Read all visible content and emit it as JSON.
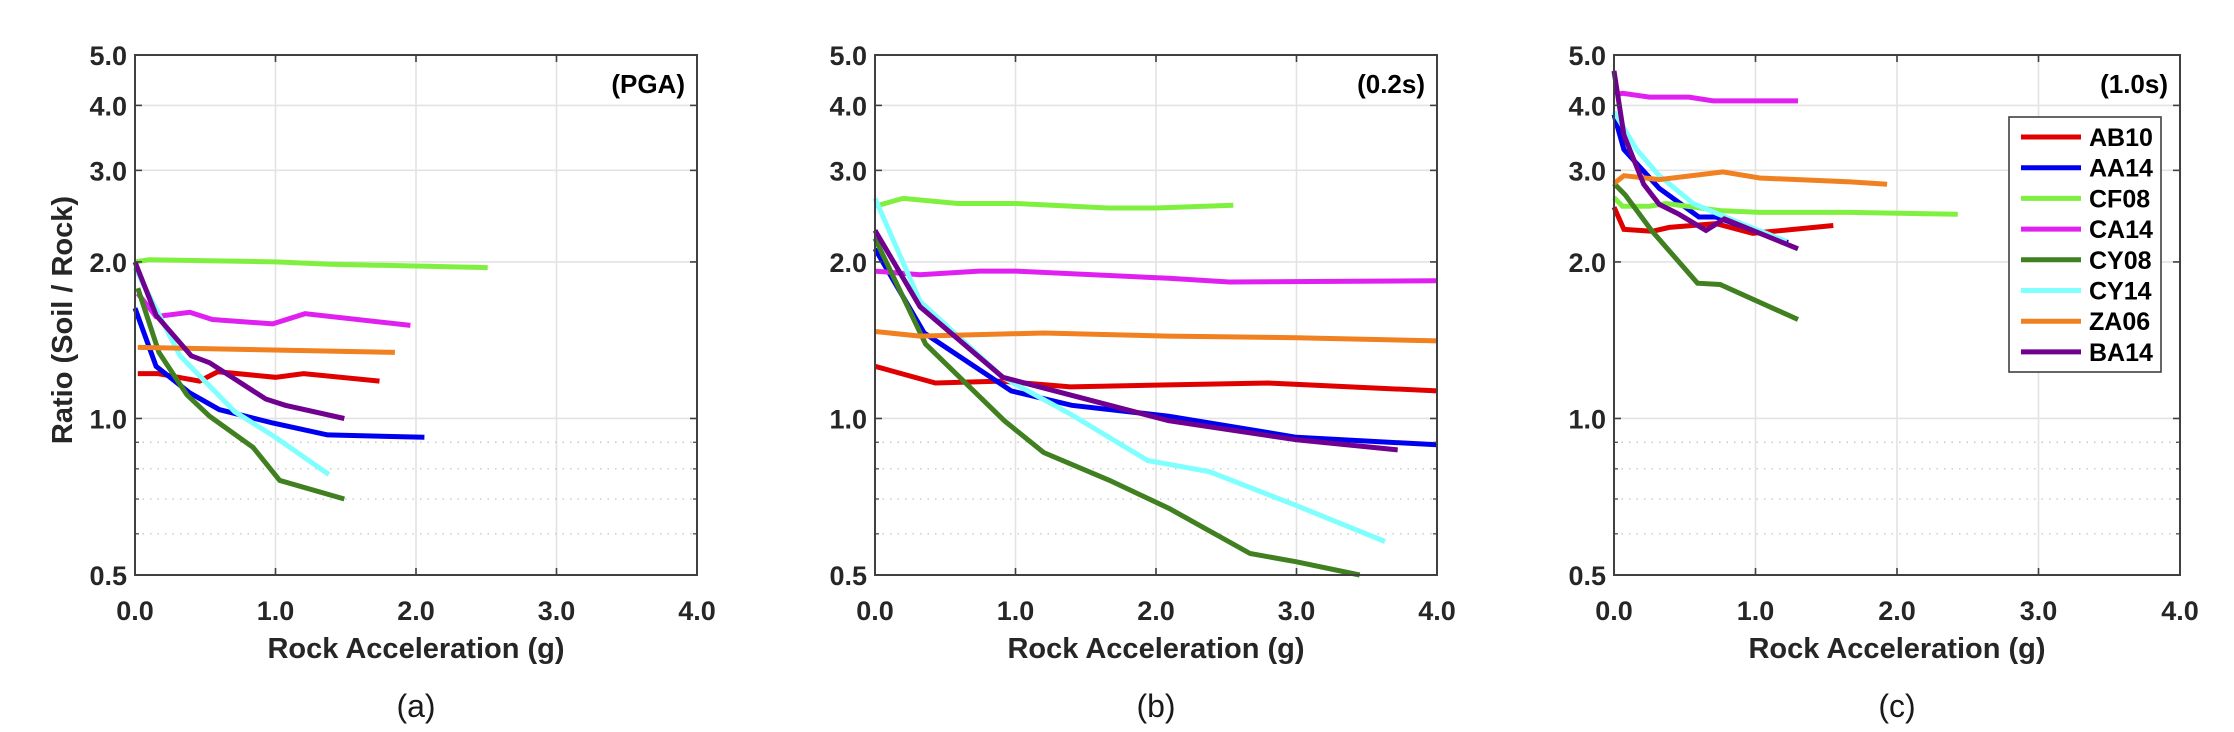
{
  "chart_data": [
    {
      "type": "line",
      "panel": "a",
      "caption": "(a)",
      "tag": "(PGA)",
      "xlabel": "Rock Acceleration (g)",
      "ylabel": "Ratio (Soil / Rock)",
      "xlim": [
        0,
        4
      ],
      "ylim": [
        0.5,
        5
      ],
      "yscale": "log",
      "xticks": [
        0,
        1,
        2,
        3,
        4
      ],
      "xtick_labels": [
        "0.0",
        "1.0",
        "2.0",
        "3.0",
        "4.0"
      ],
      "yticks": [
        0.5,
        1,
        2,
        3,
        4,
        5
      ],
      "ytick_labels": [
        "0.5",
        "1.0",
        "2.0",
        "3.0",
        "4.0",
        "5.0"
      ],
      "minor_yticks": [
        0.6,
        0.7,
        0.8,
        0.9
      ],
      "grid": true,
      "series": [
        {
          "name": "AB10",
          "x": [
            0.02,
            0.16,
            0.46,
            0.59,
            1.0,
            1.2,
            1.74
          ],
          "y": [
            1.22,
            1.22,
            1.18,
            1.23,
            1.2,
            1.22,
            1.18
          ]
        },
        {
          "name": "AA14",
          "x": [
            0.0,
            0.15,
            0.39,
            0.6,
            0.98,
            1.37,
            2.06
          ],
          "y": [
            1.63,
            1.26,
            1.12,
            1.04,
            0.98,
            0.93,
            0.92
          ]
        },
        {
          "name": "CF08",
          "x": [
            0.0,
            0.1,
            1.0,
            1.39,
            2.51
          ],
          "y": [
            2.0,
            2.02,
            2.0,
            1.98,
            1.95
          ]
        },
        {
          "name": "CA14",
          "x": [
            0.02,
            0.15,
            0.39,
            0.55,
            0.98,
            1.21,
            1.96
          ],
          "y": [
            1.74,
            1.57,
            1.6,
            1.55,
            1.52,
            1.59,
            1.51
          ]
        },
        {
          "name": "CY08",
          "x": [
            0.02,
            0.17,
            0.37,
            0.53,
            0.84,
            1.03,
            1.49
          ],
          "y": [
            1.78,
            1.34,
            1.11,
            1.01,
            0.88,
            0.76,
            0.7
          ]
        },
        {
          "name": "CY14",
          "x": [
            0.0,
            0.32,
            0.71,
            1.0,
            1.38
          ],
          "y": [
            1.95,
            1.32,
            1.03,
            0.92,
            0.78
          ]
        },
        {
          "name": "ZA06",
          "x": [
            0.02,
            1.85
          ],
          "y": [
            1.37,
            1.34
          ]
        },
        {
          "name": "BA14",
          "x": [
            0.0,
            0.15,
            0.4,
            0.53,
            0.93,
            1.07,
            1.49
          ],
          "y": [
            2.0,
            1.58,
            1.32,
            1.28,
            1.09,
            1.06,
            1.0
          ]
        }
      ]
    },
    {
      "type": "line",
      "panel": "b",
      "caption": "(b)",
      "tag": "(0.2s)",
      "xlabel": "Rock Acceleration (g)",
      "ylabel": "",
      "xlim": [
        0,
        4
      ],
      "ylim": [
        0.5,
        5
      ],
      "yscale": "log",
      "xticks": [
        0,
        1,
        2,
        3,
        4
      ],
      "xtick_labels": [
        "0.0",
        "1.0",
        "2.0",
        "3.0",
        "4.0"
      ],
      "yticks": [
        0.5,
        1,
        2,
        3,
        4,
        5
      ],
      "ytick_labels": [
        "0.5",
        "1.0",
        "2.0",
        "3.0",
        "4.0",
        "5.0"
      ],
      "minor_yticks": [
        0.6,
        0.7,
        0.8,
        0.9
      ],
      "grid": true,
      "series": [
        {
          "name": "AB10",
          "x": [
            0.0,
            0.43,
            0.9,
            1.39,
            2.09,
            2.8,
            4.0
          ],
          "y": [
            1.26,
            1.17,
            1.18,
            1.15,
            1.16,
            1.17,
            1.13
          ]
        },
        {
          "name": "AA14",
          "x": [
            0.0,
            0.35,
            0.97,
            1.4,
            2.09,
            3.0,
            4.0
          ],
          "y": [
            2.12,
            1.46,
            1.13,
            1.06,
            1.01,
            0.92,
            0.89
          ]
        },
        {
          "name": "CF08",
          "x": [
            0.0,
            0.2,
            0.59,
            1.0,
            1.66,
            2.0,
            2.55
          ],
          "y": [
            2.56,
            2.65,
            2.59,
            2.59,
            2.54,
            2.54,
            2.57
          ]
        },
        {
          "name": "CA14",
          "x": [
            0.0,
            0.32,
            0.74,
            1.0,
            2.09,
            2.52,
            4.0
          ],
          "y": [
            1.92,
            1.89,
            1.92,
            1.92,
            1.86,
            1.83,
            1.84
          ]
        },
        {
          "name": "CY08",
          "x": [
            0.0,
            0.36,
            0.92,
            1.2,
            1.67,
            2.1,
            2.67,
            3.0,
            3.45
          ],
          "y": [
            2.22,
            1.39,
            0.99,
            0.86,
            0.76,
            0.67,
            0.55,
            0.53,
            0.5
          ]
        },
        {
          "name": "CY14",
          "x": [
            0.0,
            0.32,
            0.91,
            1.39,
            1.94,
            2.38,
            3.0,
            3.63
          ],
          "y": [
            2.65,
            1.68,
            1.2,
            1.02,
            0.83,
            0.79,
            0.68,
            0.58
          ]
        },
        {
          "name": "ZA06",
          "x": [
            0.0,
            0.32,
            1.2,
            2.09,
            3.0,
            4.0
          ],
          "y": [
            1.47,
            1.44,
            1.46,
            1.44,
            1.43,
            1.41
          ]
        },
        {
          "name": "BA14",
          "x": [
            0.0,
            0.32,
            0.91,
            2.09,
            3.0,
            3.72
          ],
          "y": [
            2.3,
            1.64,
            1.2,
            0.99,
            0.91,
            0.87
          ]
        }
      ]
    },
    {
      "type": "line",
      "panel": "c",
      "caption": "(c)",
      "tag": "(1.0s)",
      "xlabel": "Rock Acceleration (g)",
      "ylabel": "",
      "xlim": [
        0,
        4
      ],
      "ylim": [
        0.5,
        5
      ],
      "yscale": "log",
      "xticks": [
        0,
        1,
        2,
        3,
        4
      ],
      "xtick_labels": [
        "0.0",
        "1.0",
        "2.0",
        "3.0",
        "4.0"
      ],
      "yticks": [
        0.5,
        1,
        2,
        3,
        4,
        5
      ],
      "ytick_labels": [
        "0.5",
        "1.0",
        "2.0",
        "3.0",
        "4.0",
        "5.0"
      ],
      "minor_yticks": [
        0.6,
        0.7,
        0.8,
        0.9
      ],
      "grid": true,
      "legend": {
        "placement": "top-right",
        "entries": [
          "AB10",
          "AA14",
          "CF08",
          "CA14",
          "CY08",
          "CY14",
          "ZA06",
          "BA14"
        ]
      },
      "series": [
        {
          "name": "AB10",
          "x": [
            0.0,
            0.07,
            0.27,
            0.39,
            0.72,
            0.98,
            1.55
          ],
          "y": [
            2.55,
            2.31,
            2.29,
            2.33,
            2.37,
            2.27,
            2.35
          ]
        },
        {
          "name": "AA14",
          "x": [
            0.0,
            0.07,
            0.32,
            0.6,
            0.72,
            1.23
          ],
          "y": [
            3.84,
            3.29,
            2.77,
            2.44,
            2.44,
            2.18
          ]
        },
        {
          "name": "CF08",
          "x": [
            0.0,
            0.06,
            0.25,
            0.37,
            0.75,
            1.03,
            1.67,
            2.43
          ],
          "y": [
            2.66,
            2.56,
            2.56,
            2.59,
            2.51,
            2.49,
            2.49,
            2.47
          ]
        },
        {
          "name": "CA14",
          "x": [
            0.01,
            0.06,
            0.25,
            0.53,
            0.7,
            1.3
          ],
          "y": [
            4.19,
            4.22,
            4.15,
            4.15,
            4.08,
            4.08
          ]
        },
        {
          "name": "CY08",
          "x": [
            0.0,
            0.08,
            0.27,
            0.59,
            0.75,
            1.3
          ],
          "y": [
            2.83,
            2.69,
            2.29,
            1.82,
            1.81,
            1.55
          ]
        },
        {
          "name": "CY14",
          "x": [
            0.0,
            0.16,
            0.32,
            0.56,
            0.82,
            1.22
          ],
          "y": [
            3.89,
            3.29,
            2.93,
            2.59,
            2.42,
            2.19
          ]
        },
        {
          "name": "ZA06",
          "x": [
            0.0,
            0.07,
            0.32,
            0.77,
            1.03,
            1.67,
            1.93
          ],
          "y": [
            2.83,
            2.93,
            2.88,
            2.98,
            2.9,
            2.85,
            2.82
          ]
        },
        {
          "name": "BA14",
          "x": [
            0.0,
            0.07,
            0.21,
            0.32,
            0.46,
            0.65,
            0.78,
            1.3
          ],
          "y": [
            4.66,
            3.51,
            2.82,
            2.58,
            2.47,
            2.3,
            2.42,
            2.12
          ]
        }
      ]
    }
  ],
  "series_colors": {
    "AB10": "#e00000",
    "AA14": "#0000f0",
    "CF08": "#80f040",
    "CA14": "#e020f0",
    "CY08": "#408020",
    "CY14": "#80ffff",
    "ZA06": "#f08020",
    "BA14": "#700090"
  }
}
